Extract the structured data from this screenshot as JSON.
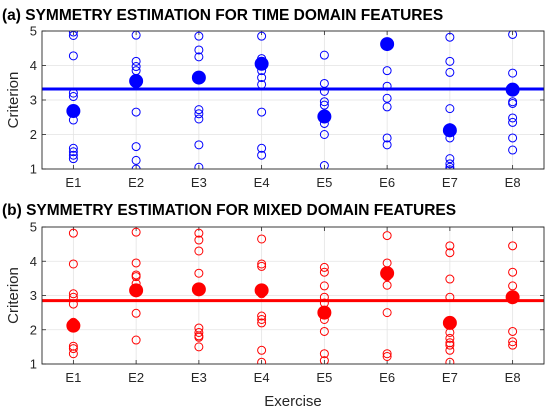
{
  "chart_data": [
    {
      "type": "scatter",
      "title": "(a) SYMMETRY ESTIMATION FOR TIME DOMAIN FEATURES",
      "xlabel": "",
      "ylabel": "Criterion",
      "categories": [
        "E1",
        "E2",
        "E3",
        "E4",
        "E5",
        "E6",
        "E7",
        "E8"
      ],
      "ylim": [
        1,
        5
      ],
      "yticks": [
        1,
        2,
        3,
        4,
        5
      ],
      "grid": true,
      "color": "#0000ff",
      "points": [
        [
          4.97,
          4.87,
          4.28,
          3.2,
          3.1,
          2.42,
          1.6,
          1.5,
          1.4,
          1.3
        ],
        [
          4.88,
          4.12,
          3.97,
          3.85,
          3.58,
          2.65,
          1.65,
          1.25,
          1.0
        ],
        [
          4.85,
          4.45,
          4.25,
          3.7,
          2.72,
          2.6,
          2.45,
          1.7,
          1.05
        ],
        [
          4.85,
          4.2,
          3.85,
          3.65,
          3.45,
          2.65,
          1.6,
          1.4
        ],
        [
          4.3,
          3.48,
          3.25,
          2.95,
          2.85,
          2.55,
          2.32,
          2.0,
          1.1
        ],
        [
          4.65,
          3.85,
          3.4,
          3.05,
          2.8,
          1.9,
          1.7
        ],
        [
          4.82,
          4.12,
          3.8,
          2.75,
          2.2,
          1.9,
          1.3,
          1.15,
          1.05,
          0.98
        ],
        [
          4.9,
          3.78,
          3.3,
          2.95,
          2.9,
          2.48,
          2.35,
          1.9,
          1.55
        ]
      ],
      "means": [
        2.68,
        3.55,
        3.65,
        4.05,
        2.52,
        4.62,
        2.12,
        3.3
      ],
      "overall_mean": 3.32
    },
    {
      "type": "scatter",
      "title": "(b) SYMMETRY ESTIMATION FOR MIXED DOMAIN FEATURES",
      "xlabel": "Exercise",
      "ylabel": "Criterion",
      "categories": [
        "E1",
        "E2",
        "E3",
        "E4",
        "E5",
        "E6",
        "E7",
        "E8"
      ],
      "ylim": [
        1,
        5
      ],
      "yticks": [
        1,
        2,
        3,
        4,
        5
      ],
      "grid": true,
      "color": "#ff0000",
      "points": [
        [
          4.82,
          3.92,
          3.05,
          2.95,
          2.75,
          2.22,
          1.52,
          1.45,
          1.3
        ],
        [
          4.85,
          3.95,
          3.6,
          3.55,
          3.35,
          2.48,
          1.7
        ],
        [
          4.82,
          4.62,
          4.3,
          3.65,
          2.05,
          1.92,
          1.82,
          1.78,
          1.5
        ],
        [
          4.65,
          3.92,
          3.85,
          3.05,
          2.4,
          2.3,
          2.2,
          1.4,
          1.05
        ],
        [
          3.82,
          3.68,
          3.28,
          2.95,
          2.78,
          2.3,
          1.95,
          1.3,
          1.1
        ],
        [
          4.75,
          3.95,
          3.55,
          3.3,
          2.5,
          1.3,
          1.22
        ],
        [
          4.45,
          4.25,
          3.48,
          2.95,
          1.92,
          1.75,
          1.62,
          1.55,
          1.4,
          1.05
        ],
        [
          4.45,
          3.68,
          3.28,
          2.92,
          1.95,
          1.65,
          1.55
        ]
      ],
      "means": [
        2.12,
        3.15,
        3.18,
        3.15,
        2.5,
        3.65,
        2.2,
        2.95
      ],
      "overall_mean": 2.85
    }
  ]
}
